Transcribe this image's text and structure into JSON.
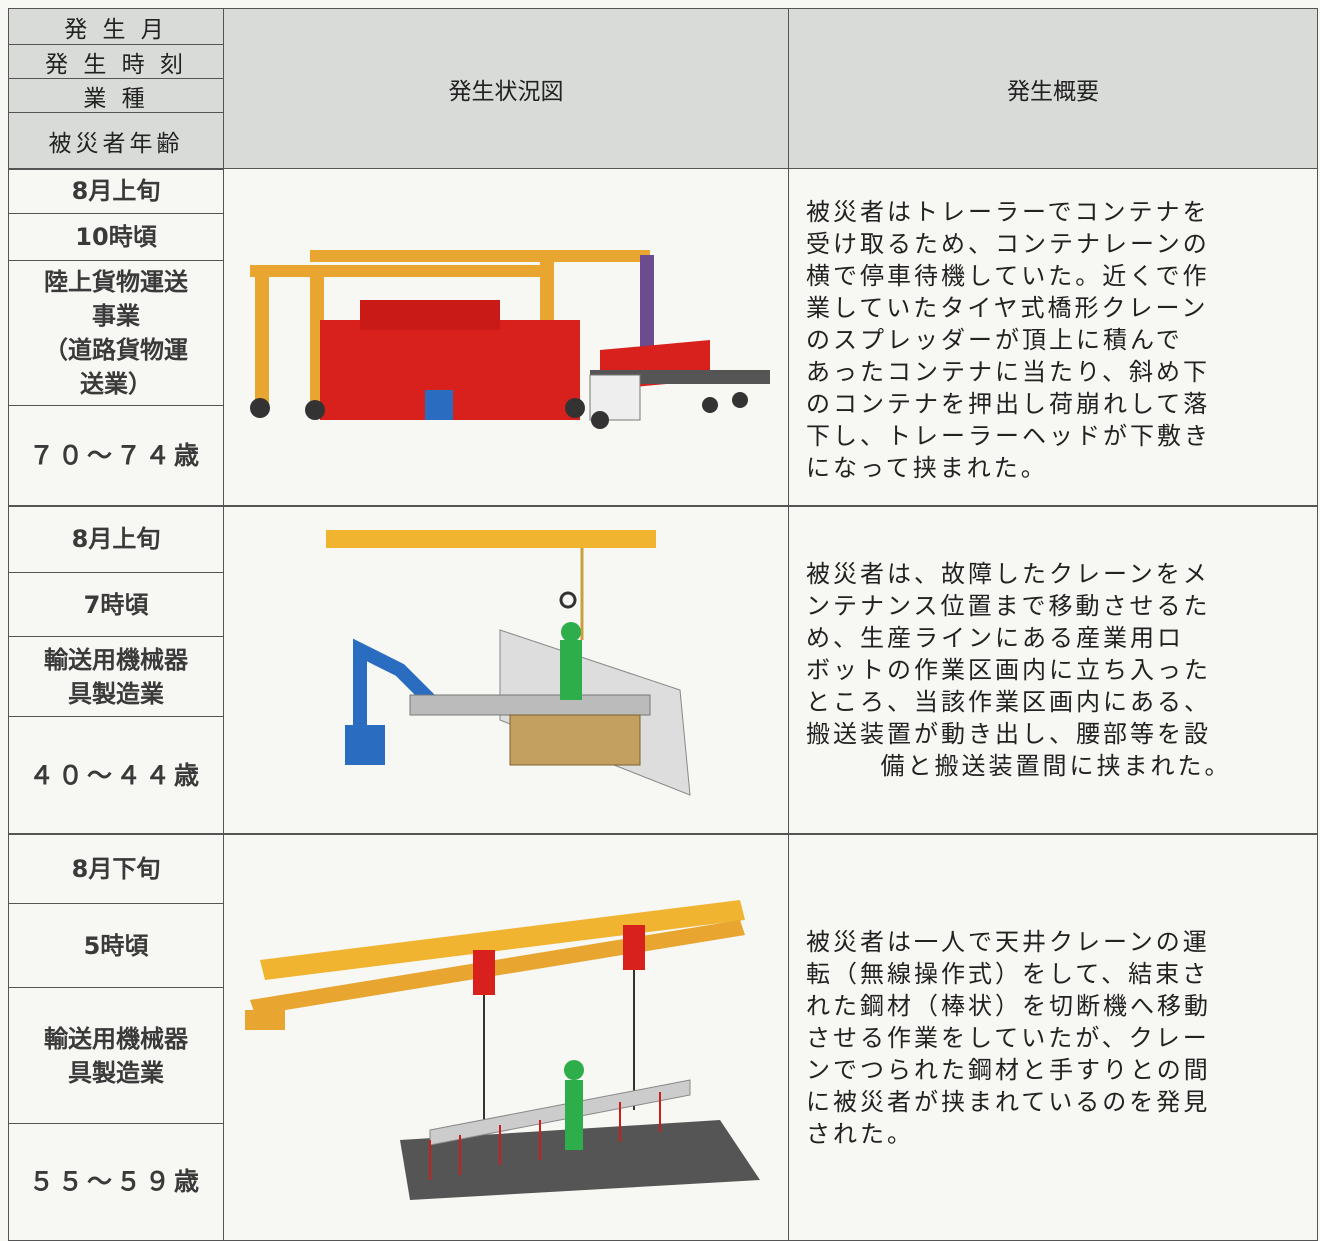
{
  "header": {
    "labels": [
      "発 生 月",
      "発 生 時 刻",
      "業 種",
      "被災者年齢"
    ],
    "illustration": "発生状況図",
    "summary": "発生概要"
  },
  "rows": [
    {
      "month": "8月上旬",
      "time": "10時頃",
      "industry": [
        "陸上貨物運送",
        "事業",
        "（道路貨物運",
        "送業）"
      ],
      "age": "７０～７４歳",
      "summary": [
        "被災者はトレーラーでコンテナを",
        "受け取るため、コンテナレーンの",
        "横で停車待機していた。近くで作",
        "業していたタイヤ式橋形クレーン",
        "のスプレッダーが頂上に積んで",
        "あったコンテナに当たり、斜め下",
        "のコンテナを押出し荷崩れして落",
        "下し、トレーラーヘッドが下敷き",
        "になって挟まれた。"
      ]
    },
    {
      "month": "8月上旬",
      "time": "7時頃",
      "industry": [
        "輸送用機械器",
        "具製造業"
      ],
      "age": "４０～４４歳",
      "summary": [
        "被災者は、故障したクレーンをメ",
        "ンテナンス位置まで移動させるた",
        "め、生産ラインにある産業用ロ",
        "ボットの作業区画内に立ち入った",
        "ところ、当該作業区画内にある、",
        "搬送装置が動き出し、腰部等を設",
        "備と搬送装置間に挟まれた。"
      ]
    },
    {
      "month": "8月下旬",
      "time": "5時頃",
      "industry": [
        "輸送用機械器",
        "具製造業"
      ],
      "age": "５５～５９歳",
      "summary": [
        "被災者は一人で天井クレーンの運",
        "転（無線操作式）をして、結束さ",
        "れた鋼材（棒状）を切断機へ移動",
        "させる作業をしていたが、クレー",
        "ンでつられた鋼材と手すりとの間",
        "に被災者が挟まれているのを発見",
        "された。"
      ]
    }
  ]
}
